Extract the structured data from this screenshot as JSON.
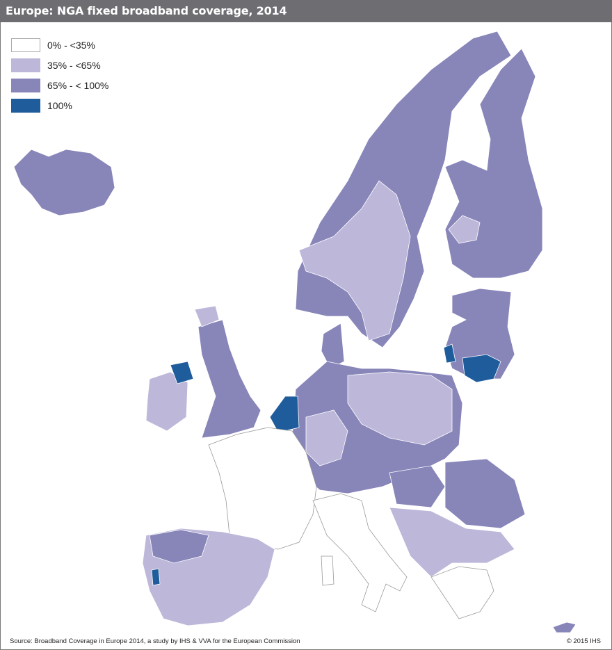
{
  "header": {
    "title": "Europe: NGA fixed broadband coverage, 2014"
  },
  "legend": {
    "items": [
      {
        "label": "0% - <35%",
        "color": "#ffffff"
      },
      {
        "label": "35% - <65%",
        "color": "#bdb7da"
      },
      {
        "label": "65% - < 100%",
        "color": "#8885b9"
      },
      {
        "label": "100%",
        "color": "#1e5c9c"
      }
    ]
  },
  "footer": {
    "source": "Source: Broadband Coverage in Europe 2014, a study by IHS & VVA for the European Commission",
    "copyright": "© 2015 IHS"
  }
}
